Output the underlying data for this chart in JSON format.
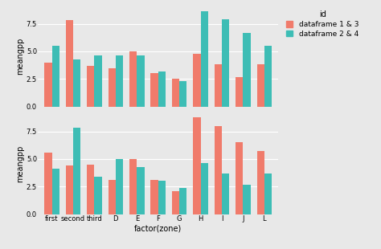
{
  "categories": [
    "first",
    "second",
    "third",
    "D",
    "E",
    "F",
    "G",
    "H",
    "I",
    "J",
    "L"
  ],
  "top_salmon": [
    4.0,
    7.8,
    3.7,
    3.5,
    5.0,
    3.0,
    2.5,
    4.8,
    3.8,
    2.7,
    3.8
  ],
  "top_teal": [
    5.5,
    4.3,
    4.6,
    4.6,
    4.6,
    3.2,
    2.3,
    8.6,
    7.9,
    6.7,
    5.5
  ],
  "bot_salmon": [
    5.6,
    4.4,
    4.5,
    3.1,
    5.0,
    3.1,
    2.1,
    8.8,
    8.0,
    6.5,
    5.7
  ],
  "bot_teal": [
    4.1,
    7.8,
    3.4,
    5.0,
    4.3,
    3.0,
    2.4,
    4.6,
    3.7,
    2.7,
    3.7
  ],
  "color_salmon": "#F07B6B",
  "color_teal": "#3DBDB5",
  "bg_color": "#E8E8E8",
  "grid_color": "#FFFFFF",
  "xlabel": "factor(zone)",
  "ylabel": "meangpp",
  "legend_title": "id",
  "legend_labels": [
    "dataframe 1 & 3",
    "dataframe 2 & 4"
  ],
  "ylim": [
    0,
    9.2
  ],
  "yticks": [
    0.0,
    2.5,
    5.0,
    7.5
  ],
  "tick_fontsize": 6,
  "label_fontsize": 7,
  "legend_fontsize": 6.5
}
